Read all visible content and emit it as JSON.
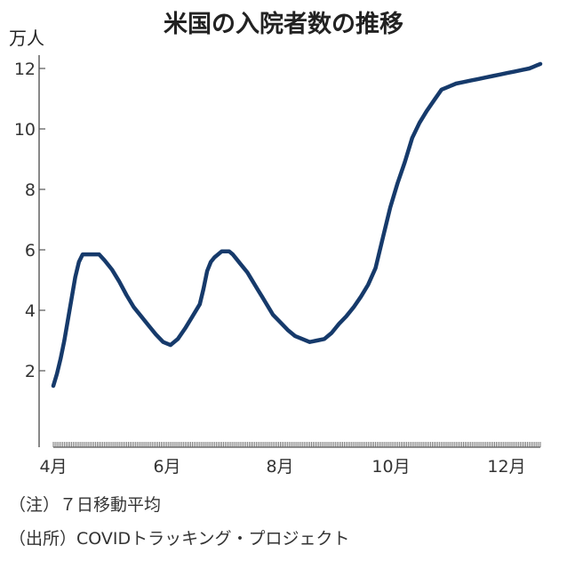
{
  "chart_data": {
    "type": "line",
    "title": "米国の入院者数の推移",
    "unit_label": "万人",
    "ylim": [
      1,
      12.6
    ],
    "yticks": [
      "2",
      "4",
      "6",
      "8",
      "10",
      "12"
    ],
    "xtick_labels": [
      "4月",
      "6月",
      "8月",
      "10月",
      "12月"
    ],
    "grid": false,
    "legend": "none",
    "line_color": "#163a6b",
    "series": [
      {
        "x": [
          0,
          2,
          4,
          6,
          8,
          10,
          12,
          14,
          16,
          18,
          20,
          22,
          25,
          28,
          32,
          36,
          40,
          44,
          48,
          52,
          56,
          60,
          64,
          68,
          72,
          76,
          80,
          82,
          84,
          86,
          88,
          90,
          92,
          94,
          96,
          98,
          100,
          102,
          104,
          106,
          108,
          110,
          112,
          114,
          116,
          118,
          120,
          124,
          128,
          132,
          136,
          140,
          144,
          148,
          152,
          156,
          160,
          164,
          168,
          172,
          176,
          180,
          184,
          188,
          192,
          196,
          200,
          204,
          208,
          212,
          216,
          220,
          224,
          228,
          232,
          236,
          240,
          244,
          248,
          252,
          256,
          260,
          262,
          264,
          266
        ],
        "values": [
          1.5,
          1.9,
          2.4,
          3.0,
          3.7,
          4.4,
          5.1,
          5.6,
          5.85,
          5.85,
          5.85,
          5.85,
          5.85,
          5.65,
          5.35,
          4.95,
          4.5,
          4.1,
          3.8,
          3.5,
          3.2,
          2.95,
          2.85,
          3.05,
          3.4,
          3.8,
          4.2,
          4.7,
          5.3,
          5.6,
          5.75,
          5.85,
          5.95,
          5.95,
          5.95,
          5.85,
          5.7,
          5.55,
          5.4,
          5.25,
          5.05,
          4.85,
          4.65,
          4.45,
          4.25,
          4.05,
          3.85,
          3.6,
          3.35,
          3.15,
          3.05,
          2.95,
          3.0,
          3.05,
          3.25,
          3.55,
          3.8,
          4.1,
          4.45,
          4.85,
          5.4,
          6.4,
          7.4,
          8.2,
          8.9,
          9.7,
          10.2,
          10.6,
          10.95,
          11.3,
          11.4,
          11.5,
          11.55,
          11.6,
          11.65,
          11.7,
          11.75,
          11.8,
          11.85,
          11.9,
          11.95,
          12.0,
          12.05,
          12.1,
          12.15
        ]
      }
    ],
    "notes": [
      "（注）７日移動平均",
      "（出所）COVIDトラッキング・プロジェクト"
    ]
  }
}
